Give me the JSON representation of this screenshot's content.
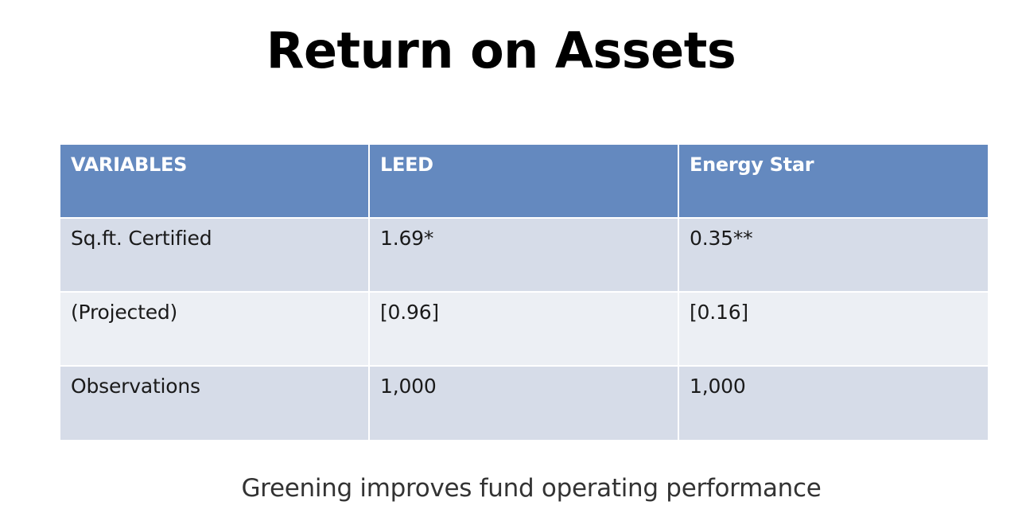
{
  "slide": {
    "title": "Return on Assets",
    "caption": "Greening improves fund operating performance"
  },
  "table": {
    "headers": [
      "VARIABLES",
      "LEED",
      "Energy Star"
    ],
    "rows": [
      [
        "Sq.ft. Certified",
        "1.69*",
        "0.35**"
      ],
      [
        "(Projected)",
        "[0.96]",
        "[0.16]"
      ],
      [
        "Observations",
        "1,000",
        "1,000"
      ]
    ]
  },
  "colors": {
    "header_background": "#6489bf",
    "row_odd_background": "#d6dce8",
    "row_even_background": "#eceff4"
  }
}
